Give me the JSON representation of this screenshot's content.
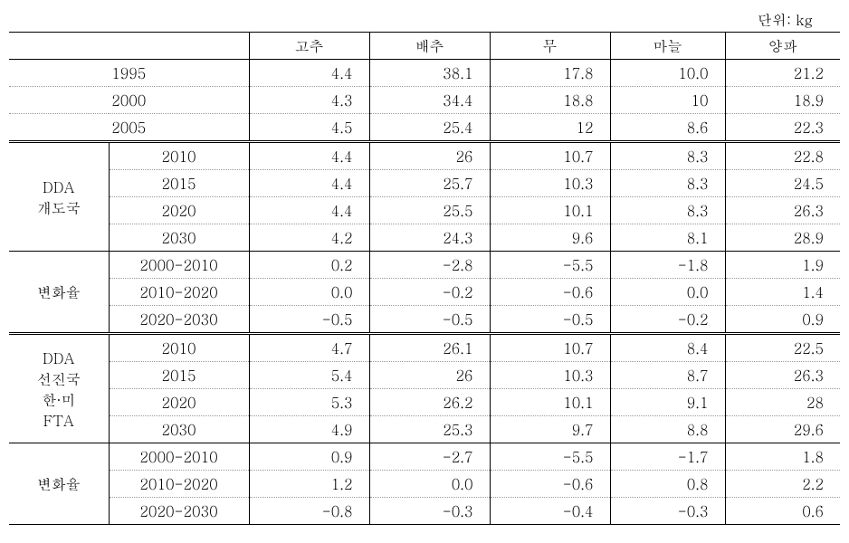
{
  "unit_label": "단위: kg",
  "columns": [
    "고추",
    "배추",
    "무",
    "마늘",
    "양파"
  ],
  "historical": [
    {
      "year": "1995",
      "values": [
        "4.4",
        "38.1",
        "17.8",
        "10.0",
        "21.2"
      ]
    },
    {
      "year": "2000",
      "values": [
        "4.3",
        "34.4",
        "18.8",
        "10",
        "18.9"
      ]
    },
    {
      "year": "2005",
      "values": [
        "4.5",
        "25.4",
        "12",
        "8.6",
        "22.3"
      ]
    }
  ],
  "sections": [
    {
      "label_lines": [
        "DDA",
        "개도국"
      ],
      "rows": [
        {
          "year": "2010",
          "values": [
            "4.4",
            "26",
            "10.7",
            "8.3",
            "22.8"
          ]
        },
        {
          "year": "2015",
          "values": [
            "4.4",
            "25.7",
            "10.3",
            "8.3",
            "24.5"
          ]
        },
        {
          "year": "2020",
          "values": [
            "4.4",
            "25.5",
            "10.1",
            "8.3",
            "26.3"
          ]
        },
        {
          "year": "2030",
          "values": [
            "4.2",
            "24.3",
            "9.6",
            "8.1",
            "28.9"
          ]
        }
      ]
    },
    {
      "label_lines": [
        "변화율"
      ],
      "rows": [
        {
          "year": "2000-2010",
          "values": [
            "0.2",
            "-2.8",
            "-5.5",
            "-1.8",
            "1.9"
          ]
        },
        {
          "year": "2010-2020",
          "values": [
            "0.0",
            "-0.2",
            "-0.6",
            "0.0",
            "1.4"
          ]
        },
        {
          "year": "2020-2030",
          "values": [
            "-0.5",
            "-0.5",
            "-0.5",
            "-0.2",
            "0.9"
          ]
        }
      ]
    },
    {
      "label_lines": [
        "DDA",
        "선진국",
        "한·미",
        "FTA"
      ],
      "rows": [
        {
          "year": "2010",
          "values": [
            "4.7",
            "26.1",
            "10.7",
            "8.4",
            "22.5"
          ]
        },
        {
          "year": "2015",
          "values": [
            "5.4",
            "26",
            "10.3",
            "8.7",
            "26.3"
          ]
        },
        {
          "year": "2020",
          "values": [
            "5.3",
            "26.2",
            "10.1",
            "9.1",
            "28"
          ]
        },
        {
          "year": "2030",
          "values": [
            "4.9",
            "25.3",
            "9.7",
            "8.8",
            "29.6"
          ]
        }
      ]
    },
    {
      "label_lines": [
        "변화율"
      ],
      "rows": [
        {
          "year": "2000-2010",
          "values": [
            "0.9",
            "-2.7",
            "-5.5",
            "-1.7",
            "1.8"
          ]
        },
        {
          "year": "2010-2020",
          "values": [
            "1.2",
            "0.0",
            "-0.6",
            "0.8",
            "2.2"
          ]
        },
        {
          "year": "2020-2030",
          "values": [
            "-0.8",
            "-0.3",
            "-0.4",
            "-0.3",
            "0.6"
          ]
        }
      ]
    }
  ],
  "col_widths": [
    "110",
    "155",
    "133",
    "133",
    "133",
    "127",
    "127"
  ],
  "colors": {
    "border": "#000000",
    "dotted": "#999999",
    "bg": "#ffffff",
    "text": "#000000"
  }
}
